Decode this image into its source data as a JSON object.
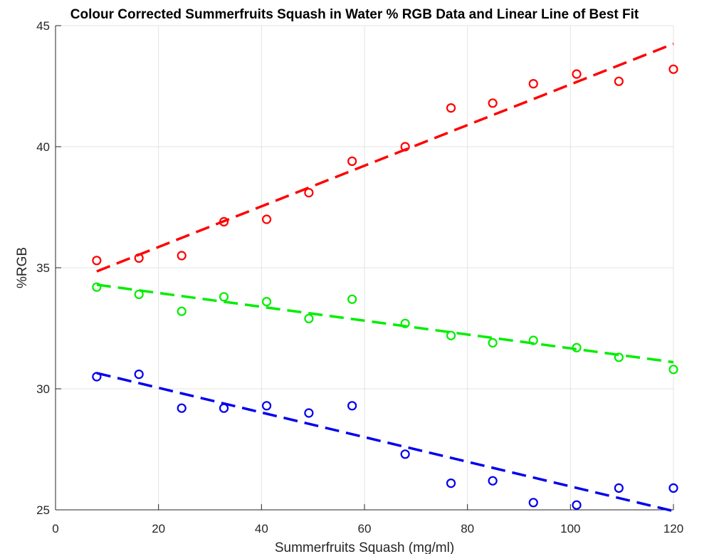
{
  "chart_data": {
    "type": "scatter",
    "title": "Colour Corrected Summerfruits Squash in Water % RGB Data and Linear Line of Best Fit",
    "xlabel": "Summerfruits Squash (mg/ml)",
    "ylabel": "%RGB",
    "xlim": [
      0,
      120
    ],
    "ylim": [
      25,
      45
    ],
    "xticks": [
      0,
      20,
      40,
      60,
      80,
      100,
      120
    ],
    "yticks": [
      25,
      30,
      35,
      40,
      45
    ],
    "grid": true,
    "x": [
      8,
      16.2,
      24.5,
      32.7,
      41,
      49.2,
      57.6,
      67.9,
      76.8,
      84.9,
      92.8,
      101.2,
      109.4,
      120
    ],
    "series": [
      {
        "color": "#ff0000",
        "values": [
          35.3,
          35.4,
          35.5,
          36.9,
          37.0,
          38.1,
          39.4,
          40.0,
          41.6,
          41.8,
          42.6,
          43.0,
          42.7,
          43.2
        ],
        "fit": [
          34.85,
          44.25
        ]
      },
      {
        "color": "#00ee00",
        "values": [
          34.2,
          33.9,
          33.2,
          33.8,
          33.6,
          32.9,
          33.7,
          32.7,
          32.2,
          31.9,
          32.0,
          31.7,
          31.3,
          30.8
        ],
        "fit": [
          34.3,
          31.1
        ]
      },
      {
        "color": "#0000ee",
        "values": [
          30.5,
          30.6,
          29.2,
          29.2,
          29.3,
          29.0,
          29.3,
          27.3,
          26.1,
          26.2,
          25.3,
          25.2,
          25.9,
          25.9
        ],
        "fit": [
          30.65,
          24.95
        ]
      }
    ]
  }
}
